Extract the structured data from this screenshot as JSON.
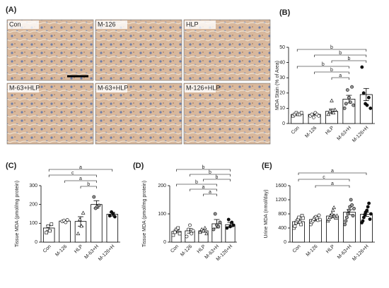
{
  "panel_a": {
    "label": "(A)",
    "images": [
      "Con",
      "M-126",
      "HLP",
      "M-63+HLP",
      "M-63+HLP",
      "M-126+HLP"
    ]
  },
  "chart_data": [
    {
      "type": "bar",
      "label": "(B)",
      "ylabel": "MDA Stain (% of Area)",
      "categories": [
        "Con",
        "M-126",
        "HLP",
        "M-63+H",
        "M-126+H"
      ],
      "values": [
        6,
        6,
        8,
        16,
        19
      ],
      "errors": [
        0.5,
        0.5,
        1.5,
        2.5,
        4
      ],
      "points": [
        [
          5,
          6,
          7,
          6,
          6,
          7
        ],
        [
          5,
          6,
          4,
          7,
          6,
          5
        ],
        [
          6,
          8,
          15,
          7,
          9
        ],
        [
          10,
          13,
          22,
          17,
          14,
          24,
          12
        ],
        [
          37,
          20,
          13,
          12,
          17,
          10
        ]
      ],
      "markers": [
        "square",
        "circle",
        "triangle",
        "circle",
        "circle"
      ],
      "marker_fills": [
        "#ffffff",
        "#ffffff",
        "#ffffff",
        "#999999",
        "#111111"
      ],
      "ylim": [
        0,
        50
      ],
      "yticks": [
        0,
        10,
        20,
        30,
        40,
        50
      ],
      "brackets": [
        {
          "from": "Con",
          "to": "M-126+H",
          "label": "b"
        },
        {
          "from": "M-126",
          "to": "M-126+H",
          "label": "b"
        },
        {
          "from": "HLP",
          "to": "M-126+H",
          "label": "b"
        },
        {
          "from": "Con",
          "to": "M-63+H",
          "label": "b"
        },
        {
          "from": "M-126",
          "to": "M-63+H",
          "label": "b"
        },
        {
          "from": "HLP",
          "to": "M-63+H",
          "label": "a"
        }
      ]
    },
    {
      "type": "bar",
      "label": "(C)",
      "ylabel": "Tissue MDA (pmol/mg protein)",
      "categories": [
        "Con",
        "M-126",
        "HLP",
        "M-63+H",
        "M-126+H"
      ],
      "values": [
        75,
        112,
        110,
        200,
        148
      ],
      "errors": [
        12,
        3,
        25,
        20,
        10
      ],
      "points": [
        [
          50,
          85,
          60,
          95
        ],
        [
          110,
          115,
          105,
          118
        ],
        [
          45,
          120,
          85,
          155
        ],
        [
          240,
          180,
          190,
          195
        ],
        [
          140,
          160,
          150,
          135
        ]
      ],
      "markers": [
        "square",
        "circle",
        "triangle",
        "circle",
        "circle"
      ],
      "marker_fills": [
        "#ffffff",
        "#ffffff",
        "#ffffff",
        "#999999",
        "#111111"
      ],
      "ylim": [
        0,
        300
      ],
      "yticks": [
        0,
        100,
        200,
        300
      ],
      "brackets": [
        {
          "from": "Con",
          "to": "M-126+H",
          "label": "a"
        },
        {
          "from": "Con",
          "to": "M-63+H",
          "label": "c"
        },
        {
          "from": "M-126",
          "to": "M-63+H",
          "label": "a"
        },
        {
          "from": "HLP",
          "to": "M-63+H",
          "label": "b"
        }
      ]
    },
    {
      "type": "bar",
      "label": "(D)",
      "ylabel": "Tissue MDA (pmol/mg protein)",
      "categories": [
        "Con",
        "M-126",
        "HLP",
        "M-63+H",
        "M-126+H"
      ],
      "values": [
        38,
        40,
        40,
        65,
        62
      ],
      "errors": [
        5,
        8,
        5,
        15,
        8
      ],
      "points": [
        [
          25,
          35,
          45,
          50,
          30
        ],
        [
          20,
          45,
          60,
          30,
          40
        ],
        [
          35,
          45,
          40,
          50,
          30
        ],
        [
          45,
          100,
          60,
          55,
          70
        ],
        [
          50,
          80,
          55,
          70,
          60
        ]
      ],
      "markers": [
        "square",
        "circle",
        "triangle",
        "circle",
        "circle"
      ],
      "marker_fills": [
        "#ffffff",
        "#ffffff",
        "#ffffff",
        "#999999",
        "#111111"
      ],
      "ylim": [
        0,
        200
      ],
      "yticks": [
        0,
        100,
        200
      ],
      "brackets": [
        {
          "from": "Con",
          "to": "M-126+H",
          "label": "b"
        },
        {
          "from": "M-126",
          "to": "M-126+H",
          "label": "b"
        },
        {
          "from": "HLP",
          "to": "M-126+H",
          "label": "b"
        },
        {
          "from": "Con",
          "to": "M-63+H",
          "label": "b"
        },
        {
          "from": "M-126",
          "to": "M-63+H",
          "label": "a"
        },
        {
          "from": "HLP",
          "to": "M-63+H",
          "label": "a"
        }
      ]
    },
    {
      "type": "bar",
      "label": "(E)",
      "ylabel": "Urine MDA (nmol/day)",
      "categories": [
        "Con",
        "M-126",
        "HLP",
        "M-63+H",
        "M-126+H"
      ],
      "values": [
        580,
        640,
        740,
        850,
        790
      ],
      "errors": [
        50,
        40,
        50,
        70,
        60
      ],
      "points": [
        [
          400,
          450,
          550,
          600,
          640,
          700,
          560,
          500,
          750,
          680
        ],
        [
          500,
          560,
          600,
          650,
          700,
          720,
          680,
          620,
          760,
          640
        ],
        [
          600,
          650,
          700,
          760,
          800,
          900,
          980,
          720,
          680,
          750
        ],
        [
          500,
          600,
          700,
          800,
          900,
          1000,
          1200,
          1050,
          750,
          950
        ],
        [
          550,
          600,
          700,
          780,
          850,
          900,
          1000,
          1100,
          650,
          800
        ]
      ],
      "markers": [
        "square",
        "circle",
        "triangle",
        "circle",
        "circle"
      ],
      "marker_fills": [
        "#ffffff",
        "#ffffff",
        "#ffffff",
        "#999999",
        "#111111"
      ],
      "ylim": [
        0,
        1600
      ],
      "yticks": [
        0,
        400,
        800,
        1200,
        1600
      ],
      "brackets": [
        {
          "from": "Con",
          "to": "M-126+H",
          "label": "a"
        },
        {
          "from": "Con",
          "to": "M-63+H",
          "label": "c"
        },
        {
          "from": "M-126",
          "to": "M-63+H",
          "label": "a"
        }
      ]
    }
  ]
}
